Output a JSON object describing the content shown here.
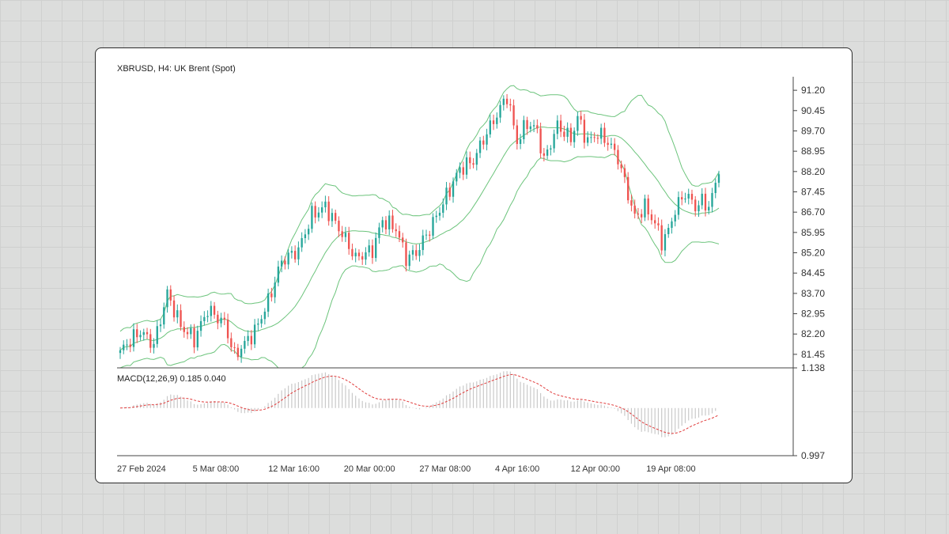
{
  "chart_data": [
    {
      "type": "candlestick",
      "title": "XBRUSD, H4: UK Brent (Spot)",
      "ylim": [
        80.95,
        91.7
      ],
      "y_ticks": [
        "91.20",
        "90.45",
        "89.70",
        "88.95",
        "88.20",
        "87.45",
        "86.70",
        "85.95",
        "85.20",
        "84.45",
        "83.70",
        "82.95",
        "82.20",
        "81.45"
      ],
      "x_ticks": [
        "27 Feb 2024",
        "5 Mar 08:00",
        "12 Mar 16:00",
        "20 Mar 00:00",
        "27 Mar 08:00",
        "4 Apr 16:00",
        "12 Apr 00:00",
        "19 Apr 08:00"
      ],
      "overlay": "Bollinger Bands (upper / middle / lower)",
      "close_anchors": [
        [
          0,
          81.6
        ],
        [
          6,
          82.3
        ],
        [
          10,
          81.8
        ],
        [
          14,
          83.7
        ],
        [
          18,
          82.5
        ],
        [
          22,
          82.0
        ],
        [
          26,
          83.1
        ],
        [
          31,
          82.6
        ],
        [
          34,
          81.4
        ],
        [
          40,
          82.3
        ],
        [
          44,
          83.4
        ],
        [
          48,
          84.9
        ],
        [
          53,
          85.3
        ],
        [
          57,
          86.6
        ],
        [
          61,
          86.9
        ],
        [
          66,
          85.9
        ],
        [
          70,
          85.0
        ],
        [
          75,
          85.3
        ],
        [
          78,
          86.4
        ],
        [
          82,
          86.1
        ],
        [
          85,
          85.0
        ],
        [
          88,
          85.2
        ],
        [
          93,
          86.3
        ],
        [
          97,
          87.3
        ],
        [
          101,
          88.3
        ],
        [
          105,
          88.6
        ],
        [
          108,
          89.4
        ],
        [
          112,
          90.3
        ],
        [
          115,
          91.0
        ],
        [
          118,
          89.3
        ],
        [
          121,
          90.0
        ],
        [
          124,
          89.7
        ],
        [
          126,
          88.6
        ],
        [
          130,
          89.9
        ],
        [
          134,
          89.4
        ],
        [
          136,
          90.2
        ],
        [
          139,
          89.3
        ],
        [
          142,
          89.6
        ],
        [
          145,
          89.3
        ],
        [
          148,
          88.7
        ],
        [
          150,
          87.8
        ],
        [
          153,
          86.5
        ],
        [
          156,
          86.9
        ],
        [
          159,
          86.3
        ],
        [
          161,
          85.6
        ],
        [
          163,
          86.0
        ],
        [
          165,
          86.8
        ],
        [
          168,
          87.4
        ],
        [
          171,
          86.9
        ],
        [
          173,
          87.1
        ],
        [
          175,
          86.9
        ],
        [
          178,
          88.1
        ]
      ]
    },
    {
      "type": "macd",
      "label": "MACD(12,26,9) 0.185 0.040",
      "ylim": [
        0.997,
        1.138
      ],
      "y_ticks": [
        "1.138",
        "0.997"
      ]
    }
  ],
  "colors": {
    "up": "#26a69a",
    "down": "#ef5350",
    "bands": "#6cc47c",
    "signal": "#e03b3b",
    "histogram": "#c9c9c9"
  }
}
